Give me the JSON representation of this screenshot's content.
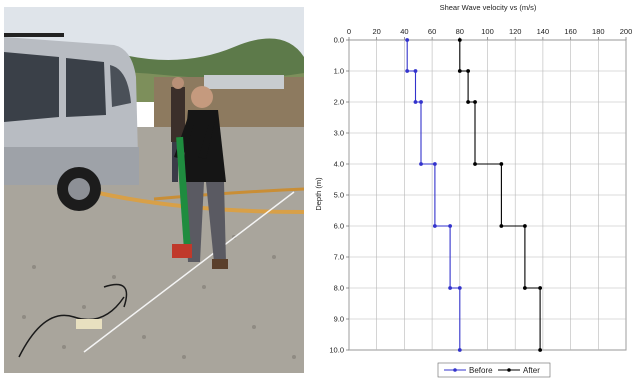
{
  "chart_data": {
    "type": "line",
    "title": "Shear Wave velocity vs (m/s)",
    "xlabel": "",
    "ylabel": "Depth (m)",
    "xlim": [
      0,
      200
    ],
    "ylim": [
      0,
      10
    ],
    "x_ticks": [
      "0",
      "20",
      "40",
      "60",
      "80",
      "100",
      "120",
      "140",
      "160",
      "180",
      "200"
    ],
    "y_ticks": [
      "0.0",
      "1.0",
      "2.0",
      "3.0",
      "4.0",
      "5.0",
      "6.0",
      "7.0",
      "8.0",
      "9.0",
      "10.0"
    ],
    "x_axis_position": "top",
    "y_axis_reversed": true,
    "grid": true,
    "legend_position": "bottom",
    "series": [
      {
        "name": "Before",
        "color": "#3333cc",
        "marker": "filled-circle",
        "points": [
          [
            42,
            0
          ],
          [
            42,
            1
          ],
          [
            48,
            1
          ],
          [
            48,
            2
          ],
          [
            52,
            2
          ],
          [
            52,
            4
          ],
          [
            62,
            4
          ],
          [
            62,
            6
          ],
          [
            73,
            6
          ],
          [
            73,
            8
          ],
          [
            80,
            8
          ],
          [
            80,
            10
          ]
        ]
      },
      {
        "name": "After",
        "color": "#000000",
        "marker": "filled-circle",
        "points": [
          [
            80,
            0
          ],
          [
            80,
            1
          ],
          [
            86,
            1
          ],
          [
            86,
            2
          ],
          [
            91,
            2
          ],
          [
            91,
            4
          ],
          [
            110,
            4
          ],
          [
            110,
            6
          ],
          [
            127,
            6
          ],
          [
            127,
            8
          ],
          [
            138,
            8
          ],
          [
            138,
            10
          ]
        ]
      }
    ]
  },
  "photo": {
    "caption": "",
    "icon": "field-test-photo"
  }
}
